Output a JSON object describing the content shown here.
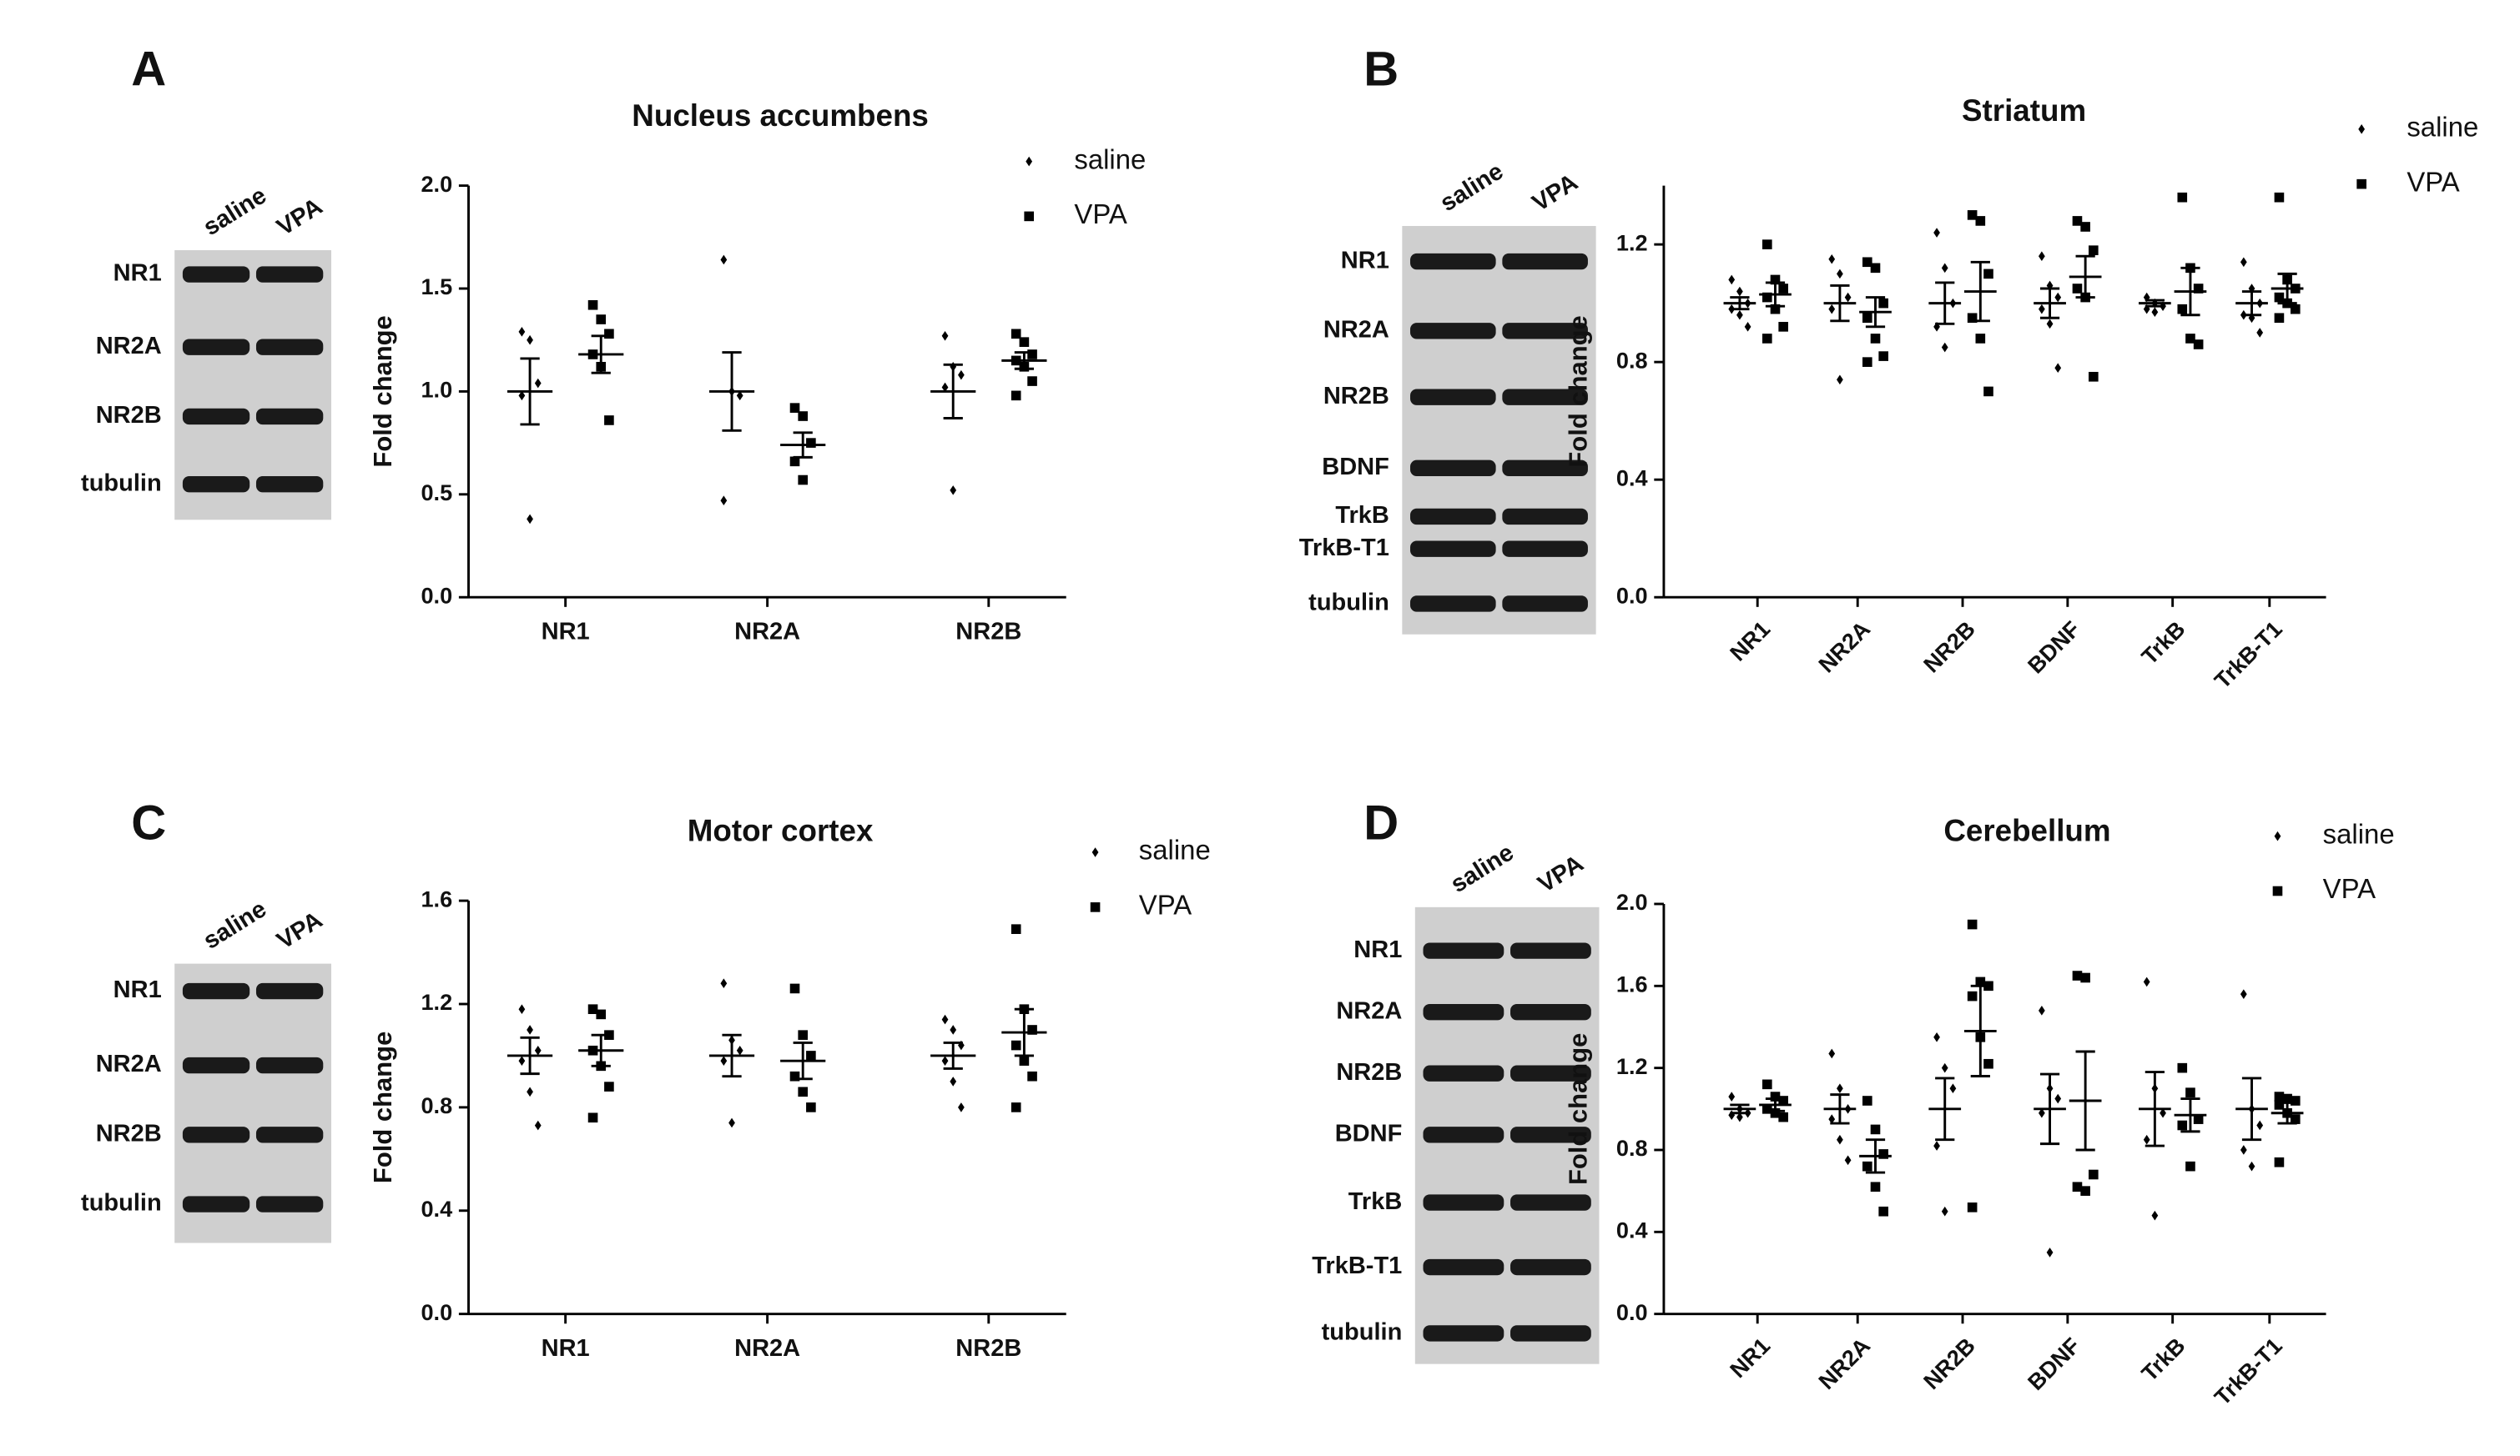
{
  "chart_data": [
    {
      "type": "dotplot",
      "panel": "A",
      "title": "Nucleus accumbens",
      "ylabel": "Fold change",
      "blot": {
        "lanes": [
          "saline",
          "VPA"
        ],
        "bands": [
          "NR1",
          "NR2A",
          "NR2B",
          "tubulin"
        ]
      },
      "categories": [
        "NR1",
        "NR2A",
        "NR2B"
      ],
      "ylim": [
        0,
        2
      ],
      "yticks": [
        {
          "value": 0,
          "label": "0.0"
        },
        0.5,
        {
          "value": 1,
          "label": "1.0"
        },
        1.5,
        {
          "value": 2,
          "label": "2.0"
        }
      ],
      "series": [
        {
          "name": "saline",
          "color": "#000000",
          "marker": "diamond",
          "points": [
            [
              1.29,
              1.25,
              1.04,
              0.98,
              0.38
            ],
            [
              1.64,
              1.0,
              0.98,
              0.47
            ],
            [
              1.27,
              1.12,
              1.08,
              1.02,
              0.52
            ]
          ],
          "mean": [
            1.0,
            1.0,
            1.0
          ],
          "sem": [
            0.16,
            0.19,
            0.13
          ]
        },
        {
          "name": "VPA",
          "color": "#000000",
          "marker": "square",
          "points": [
            [
              1.42,
              1.35,
              1.28,
              1.18,
              1.12,
              0.86
            ],
            [
              0.92,
              0.88,
              0.75,
              0.66,
              0.57
            ],
            [
              1.28,
              1.24,
              1.18,
              1.15,
              1.12,
              1.05,
              0.98
            ]
          ],
          "mean": [
            1.18,
            0.74,
            1.15
          ],
          "sem": [
            0.09,
            0.06,
            0.04
          ]
        }
      ]
    },
    {
      "type": "dotplot",
      "panel": "B",
      "title": "Striatum",
      "ylabel": "Fold change",
      "blot": {
        "lanes": [
          "saline",
          "VPA"
        ],
        "bands": [
          "NR1",
          "NR2A",
          "NR2B",
          "BDNF",
          "TrkB",
          "TrkB-T1",
          "tubulin"
        ]
      },
      "categories": [
        "NR1",
        "NR2A",
        "NR2B",
        "BDNF",
        "TrkB",
        "TrkB-T1"
      ],
      "ylim": [
        0,
        1.4
      ],
      "yticks": [
        {
          "value": 0,
          "label": "0.0"
        },
        0.4,
        0.8,
        1.2
      ],
      "series": [
        {
          "name": "saline",
          "color": "#000000",
          "marker": "diamond",
          "points": [
            [
              1.08,
              1.04,
              1.0,
              0.98,
              0.96,
              0.92
            ],
            [
              1.15,
              1.1,
              1.02,
              0.98,
              0.74
            ],
            [
              1.24,
              1.12,
              1.0,
              0.92,
              0.85
            ],
            [
              1.16,
              1.06,
              1.02,
              0.98,
              0.93,
              0.78
            ],
            [
              1.02,
              1.0,
              0.99,
              0.98,
              0.97
            ],
            [
              1.14,
              1.05,
              1.0,
              0.96,
              0.95,
              0.9
            ]
          ],
          "mean": [
            1.0,
            1.0,
            1.0,
            1.0,
            1.0,
            1.0
          ],
          "sem": [
            0.02,
            0.06,
            0.07,
            0.05,
            0.01,
            0.04
          ]
        },
        {
          "name": "VPA",
          "color": "#000000",
          "marker": "square",
          "points": [
            [
              1.2,
              1.08,
              1.05,
              1.02,
              0.98,
              0.92,
              0.88
            ],
            [
              1.14,
              1.12,
              1.0,
              0.95,
              0.88,
              0.82,
              0.8
            ],
            [
              1.3,
              1.28,
              1.1,
              0.95,
              0.88,
              0.7
            ],
            [
              1.28,
              1.26,
              1.18,
              1.05,
              1.02,
              0.75
            ],
            [
              1.36,
              1.12,
              1.05,
              0.98,
              0.88,
              0.86
            ],
            [
              1.36,
              1.08,
              1.05,
              1.02,
              1.0,
              0.98,
              0.95
            ]
          ],
          "mean": [
            1.03,
            0.97,
            1.04,
            1.09,
            1.04,
            1.05
          ],
          "sem": [
            0.04,
            0.05,
            0.1,
            0.07,
            0.08,
            0.05
          ]
        }
      ]
    },
    {
      "type": "dotplot",
      "panel": "C",
      "title": "Motor cortex",
      "ylabel": "Fold change",
      "blot": {
        "lanes": [
          "saline",
          "VPA"
        ],
        "bands": [
          "NR1",
          "NR2A",
          "NR2B",
          "tubulin"
        ]
      },
      "categories": [
        "NR1",
        "NR2A",
        "NR2B"
      ],
      "ylim": [
        0,
        1.6
      ],
      "yticks": [
        {
          "value": 0,
          "label": "0.0"
        },
        0.4,
        0.8,
        1.2,
        1.6
      ],
      "series": [
        {
          "name": "saline",
          "color": "#000000",
          "marker": "diamond",
          "points": [
            [
              1.18,
              1.1,
              1.02,
              0.98,
              0.86,
              0.73
            ],
            [
              1.28,
              1.06,
              1.02,
              0.98,
              0.74
            ],
            [
              1.14,
              1.1,
              1.04,
              0.98,
              0.9,
              0.8
            ]
          ],
          "mean": [
            1.0,
            1.0,
            1.0
          ],
          "sem": [
            0.07,
            0.08,
            0.05
          ]
        },
        {
          "name": "VPA",
          "color": "#000000",
          "marker": "square",
          "points": [
            [
              1.18,
              1.16,
              1.08,
              1.02,
              0.96,
              0.88,
              0.76
            ],
            [
              1.26,
              1.08,
              1.0,
              0.92,
              0.86,
              0.8
            ],
            [
              1.49,
              1.18,
              1.1,
              1.04,
              0.98,
              0.92,
              0.8
            ]
          ],
          "mean": [
            1.02,
            0.98,
            1.09
          ],
          "sem": [
            0.06,
            0.07,
            0.09
          ]
        }
      ]
    },
    {
      "type": "dotplot",
      "panel": "D",
      "title": "Cerebellum",
      "ylabel": "Fold change",
      "blot": {
        "lanes": [
          "saline",
          "VPA"
        ],
        "bands": [
          "NR1",
          "NR2A",
          "NR2B",
          "BDNF",
          "TrkB",
          "TrkB-T1",
          "tubulin"
        ]
      },
      "categories": [
        "NR1",
        "NR2A",
        "NR2B",
        "BDNF",
        "TrkB",
        "TrkB-T1"
      ],
      "ylim": [
        0,
        2
      ],
      "yticks": [
        {
          "value": 0,
          "label": "0.0"
        },
        0.4,
        0.8,
        1.2,
        1.6,
        {
          "value": 2,
          "label": "2.0"
        }
      ],
      "series": [
        {
          "name": "saline",
          "color": "#000000",
          "marker": "diamond",
          "points": [
            [
              1.06,
              1.0,
              0.98,
              0.97,
              0.96
            ],
            [
              1.27,
              1.1,
              1.0,
              0.95,
              0.85,
              0.75
            ],
            [
              1.35,
              1.2,
              1.1,
              0.82,
              0.5
            ],
            [
              1.48,
              1.1,
              1.05,
              0.98,
              0.3
            ],
            [
              1.62,
              1.1,
              0.98,
              0.85,
              0.48
            ],
            [
              1.56,
              1.0,
              0.92,
              0.8,
              0.72
            ]
          ],
          "mean": [
            1.0,
            1.0,
            1.0,
            1.0,
            1.0,
            1.0
          ],
          "sem": [
            0.02,
            0.07,
            0.15,
            0.17,
            0.18,
            0.15
          ]
        },
        {
          "name": "VPA",
          "color": "#000000",
          "marker": "square",
          "points": [
            [
              1.12,
              1.06,
              1.04,
              1.0,
              0.98,
              0.96
            ],
            [
              1.04,
              0.9,
              0.78,
              0.72,
              0.62,
              0.5
            ],
            [
              1.9,
              1.62,
              1.6,
              1.55,
              1.35,
              1.22,
              0.52
            ],
            [
              1.65,
              1.64,
              0.68,
              0.62,
              0.6
            ],
            [
              1.2,
              1.08,
              0.95,
              0.92,
              0.72
            ],
            [
              1.06,
              1.05,
              1.04,
              1.02,
              0.98,
              0.95,
              0.74
            ]
          ],
          "mean": [
            1.02,
            0.77,
            1.38,
            1.04,
            0.97,
            0.98
          ],
          "sem": [
            0.03,
            0.08,
            0.22,
            0.24,
            0.08,
            0.05
          ]
        }
      ]
    }
  ]
}
